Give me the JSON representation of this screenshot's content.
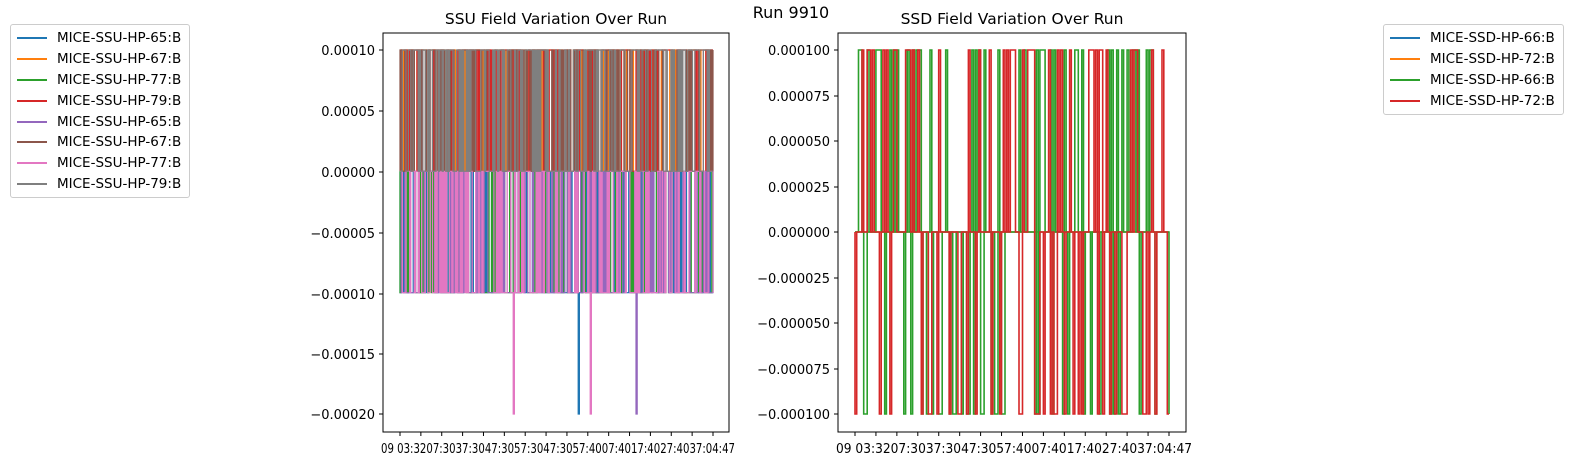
{
  "figure": {
    "suptitle": "Run 9910"
  },
  "colors": {
    "c0": "#1f77b4",
    "c1": "#ff7f0e",
    "c2": "#2ca02c",
    "c3": "#d62728",
    "c4": "#9467bd",
    "c5": "#8c564b",
    "c6": "#e377c2",
    "c7": "#7f7f7f"
  },
  "chart_data": [
    {
      "type": "line",
      "title": "SSU Field Variation Over Run",
      "xlabel": "",
      "ylabel": "",
      "x_tick_labels": [
        "09 03:32",
        "03:37",
        "03:42",
        "03:47",
        "03:52",
        "03:57",
        "04:02",
        "04:07",
        "04:12",
        "04:17",
        "04:22",
        "04:27",
        "04:32",
        "04:37",
        "04:42",
        "04:47"
      ],
      "x_tick_text": "09 03:3207:3037:3047:3057:3047:3057:4007:4017:4027:4037:04:47",
      "y_tick_labels": [
        "0.00010",
        "0.00005",
        "0.00000",
        "−0.00005",
        "−0.00010",
        "−0.00015",
        "−0.00020"
      ],
      "ylim": [
        -0.00021,
        0.000115
      ],
      "legend_position": "left of figure",
      "series": [
        {
          "name": "MICE-SSU-HP-65:B",
          "color": "#1f77b4",
          "levels": [
            0,
            -0.0001
          ],
          "spikes": [
            -0.0002
          ]
        },
        {
          "name": "MICE-SSU-HP-67:B",
          "color": "#ff7f0e",
          "levels": [
            0,
            0.0001
          ]
        },
        {
          "name": "MICE-SSU-HP-77:B",
          "color": "#2ca02c",
          "levels": [
            0,
            -0.0001
          ]
        },
        {
          "name": "MICE-SSU-HP-79:B",
          "color": "#d62728",
          "levels": [
            0,
            0.0001
          ]
        },
        {
          "name": "MICE-SSU-HP-65:B",
          "color": "#9467bd",
          "levels": [
            0,
            -0.0001
          ],
          "spikes": [
            -0.0002
          ]
        },
        {
          "name": "MICE-SSU-HP-67:B",
          "color": "#8c564b",
          "levels": [
            0,
            0.0001
          ]
        },
        {
          "name": "MICE-SSU-HP-77:B",
          "color": "#e377c2",
          "levels": [
            0,
            -0.0001
          ],
          "spikes": [
            -0.0002
          ]
        },
        {
          "name": "MICE-SSU-HP-79:B",
          "color": "#7f7f7f",
          "levels": [
            0,
            0.0001
          ]
        }
      ],
      "spike_values": [
        -0.0002
      ]
    },
    {
      "type": "line",
      "title": "SSD Field Variation Over Run",
      "xlabel": "",
      "ylabel": "",
      "x_tick_labels": [
        "09 03:32",
        "03:37",
        "03:42",
        "03:47",
        "03:52",
        "03:57",
        "04:02",
        "04:07",
        "04:12",
        "04:17",
        "04:22",
        "04:27",
        "04:32",
        "04:37",
        "04:42",
        "04:47"
      ],
      "x_tick_text": "09 03:3207:3037:3047:3057:4007:4017:4027:4037:04:47",
      "y_tick_labels": [
        "0.000100",
        "0.000075",
        "0.000050",
        "0.000025",
        "0.000000",
        "−0.000025",
        "−0.000050",
        "−0.000075",
        "−0.000100"
      ],
      "ylim": [
        -0.00011,
        0.00011
      ],
      "legend_position": "right of figure",
      "series": [
        {
          "name": "MICE-SSD-HP-66:B",
          "color": "#1f77b4",
          "levels": [
            0,
            0.0001,
            -0.0001
          ]
        },
        {
          "name": "MICE-SSD-HP-72:B",
          "color": "#ff7f0e",
          "levels": [
            0,
            0.0001,
            -0.0001
          ]
        },
        {
          "name": "MICE-SSD-HP-66:B",
          "color": "#2ca02c",
          "levels": [
            0,
            0.0001,
            -0.0001
          ]
        },
        {
          "name": "MICE-SSD-HP-72:B",
          "color": "#d62728",
          "levels": [
            0,
            0.0001,
            -0.0001
          ]
        }
      ]
    }
  ]
}
